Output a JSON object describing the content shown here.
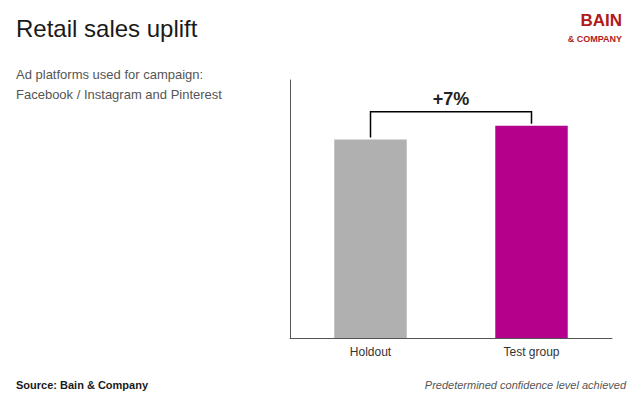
{
  "chart_data": {
    "type": "bar",
    "title": "Retail sales uplift",
    "subtitle": "Ad platforms used for campaign:\nFacebook / Instagram and Pinterest",
    "categories": [
      "Holdout",
      "Test group"
    ],
    "values": [
      100,
      107
    ],
    "colors": [
      "#b0b0b0",
      "#b5008c"
    ],
    "ylim": [
      0,
      130
    ],
    "grid": false,
    "tick_labels": "x",
    "annotations": [
      "+7%"
    ],
    "source": "Source: Bain & Company",
    "footnote": "Predetermined confidence level achieved",
    "logo": [
      "BAIN",
      "& COMPANY"
    ]
  }
}
